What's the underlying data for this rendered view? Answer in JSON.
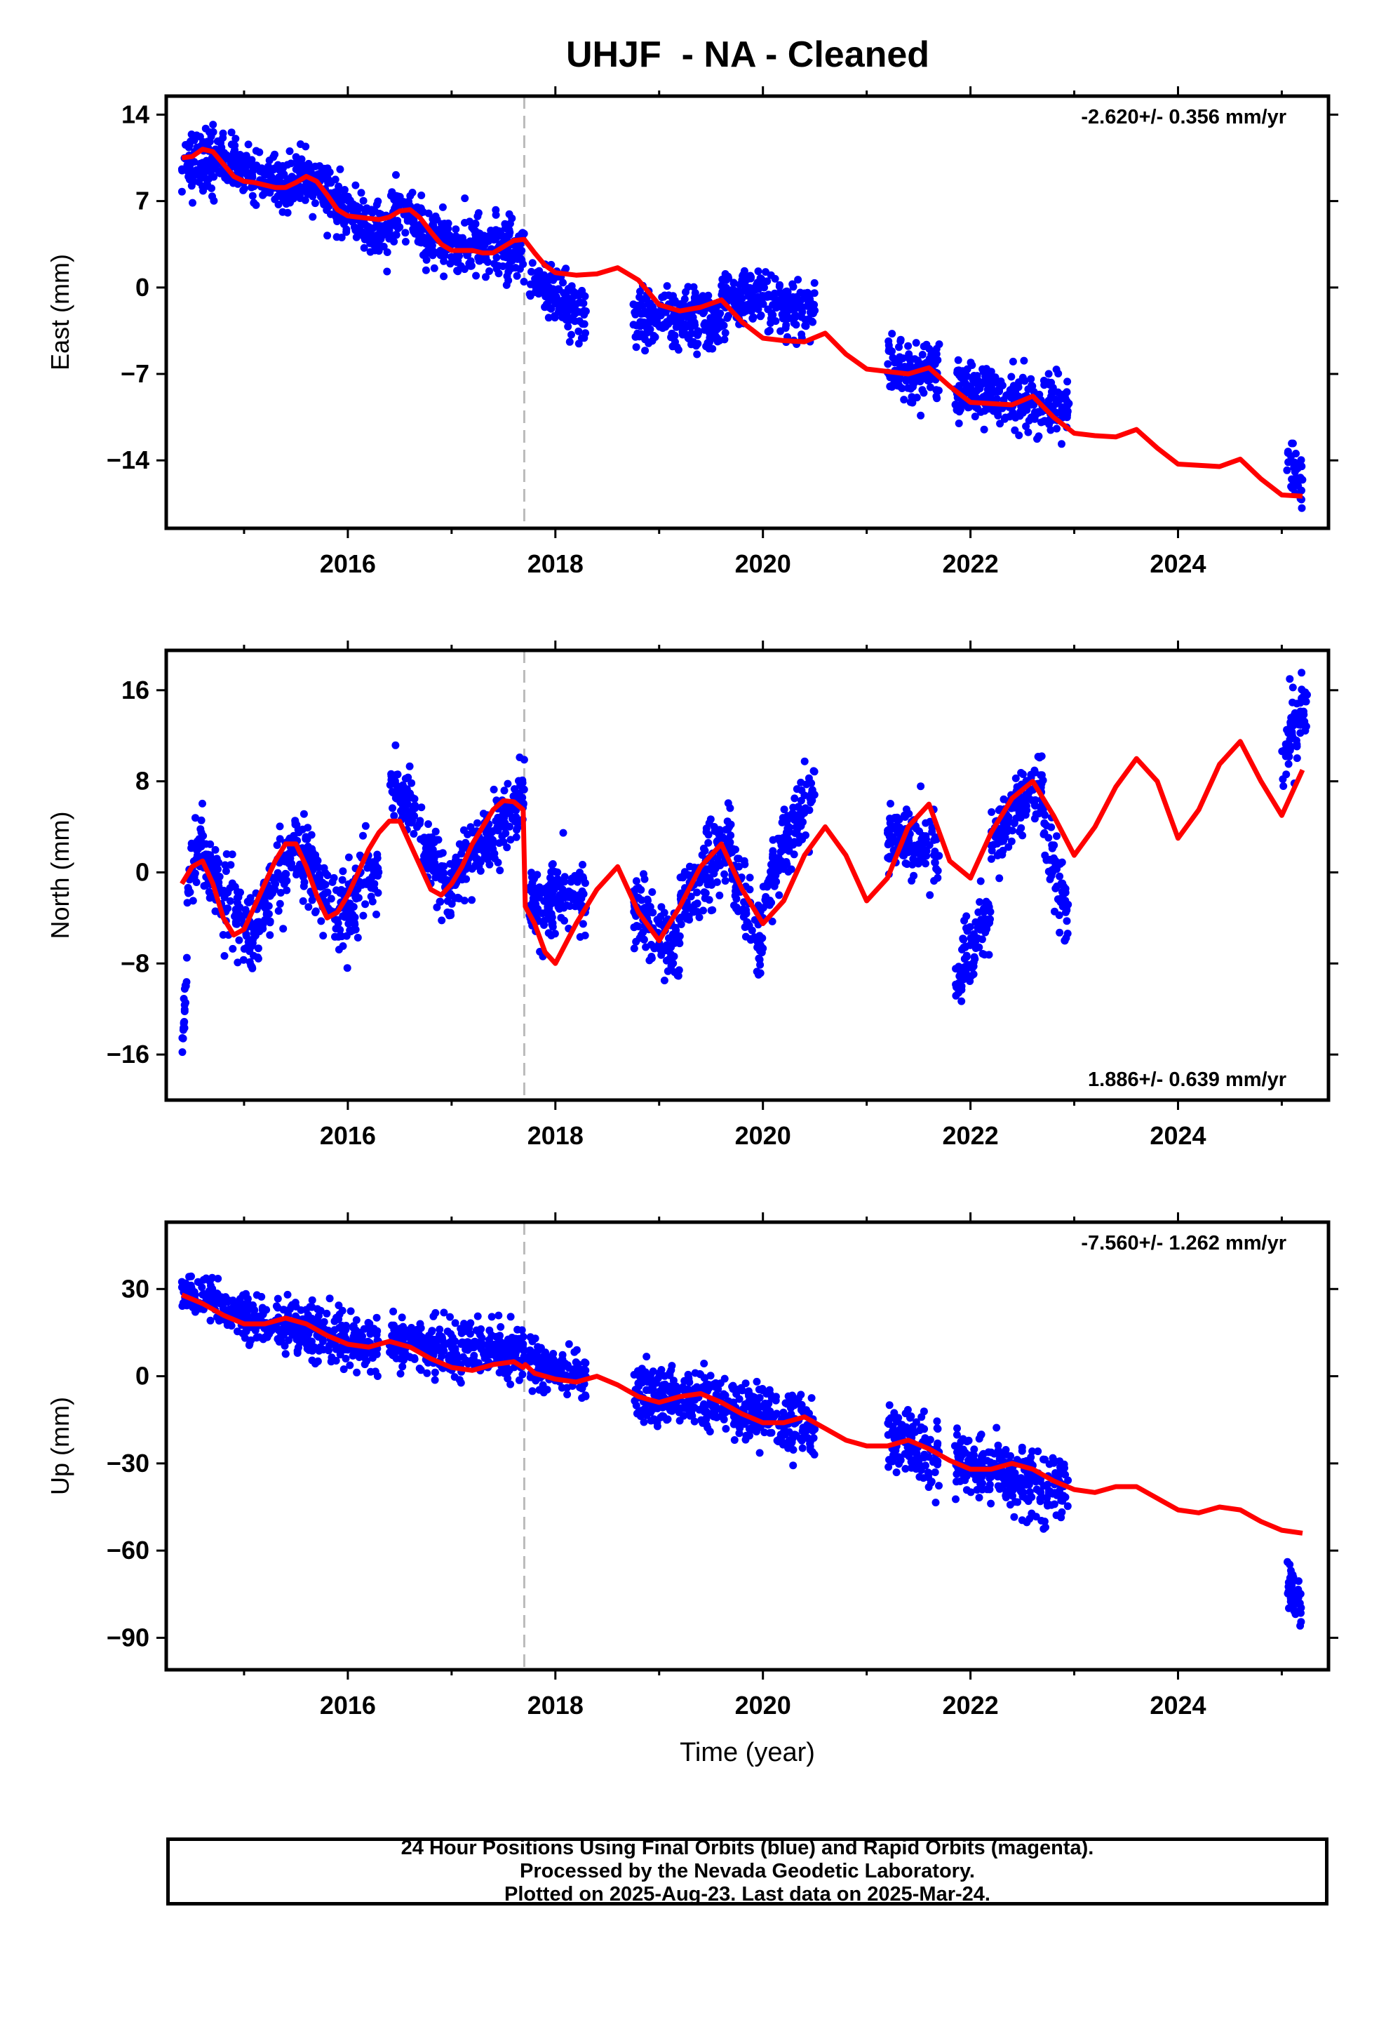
{
  "title": "UHJF  - NA - Cleaned",
  "footer": {
    "line1": "24 Hour Positions Using Final Orbits (blue) and Rapid Orbits (magenta).",
    "line2": "Processed by the Nevada Geodetic Laboratory.",
    "line3": "Plotted on 2025-Aug-23. Last data on 2025-Mar-24."
  },
  "colors": {
    "data": "#0000ff",
    "model": "#ff0000",
    "break_line": "#bbbbbb"
  },
  "chart_data": [
    {
      "type": "scatter",
      "ylabel": "East (mm)",
      "rate_label": "-2.620+/- 0.356 mm/yr",
      "rate_position": "top-right",
      "xlim": [
        2014.25,
        2025.45
      ],
      "ylim": [
        -19.5,
        15.5
      ],
      "yticks": [
        14,
        7,
        0,
        -7,
        -14
      ],
      "ytick_labels": [
        "14",
        "7",
        "0",
        "−7",
        "−14"
      ],
      "xticks": [
        2016,
        2018,
        2020,
        2022,
        2024
      ],
      "xtick_labels": [
        "2016",
        "2018",
        "2020",
        "2022",
        "2024"
      ],
      "break_epoch": 2017.7,
      "scatter_segments": [
        {
          "x": [
            2014.4,
            2014.7
          ],
          "y": [
            10,
            10.5
          ],
          "spread": 2.5
        },
        {
          "x": [
            2014.7,
            2015.5
          ],
          "y": [
            10.5,
            8
          ],
          "spread": 1.8
        },
        {
          "x": [
            2015.5,
            2016.0
          ],
          "y": [
            9.5,
            6
          ],
          "spread": 2
        },
        {
          "x": [
            2016.0,
            2016.4
          ],
          "y": [
            6,
            4
          ],
          "spread": 2
        },
        {
          "x": [
            2016.4,
            2017.0
          ],
          "y": [
            6,
            3.5
          ],
          "spread": 2
        },
        {
          "x": [
            2017.0,
            2017.7
          ],
          "y": [
            3.5,
            3
          ],
          "spread": 2.2
        },
        {
          "x": [
            2017.75,
            2018.3
          ],
          "y": [
            0.5,
            -2
          ],
          "spread": 2
        },
        {
          "x": [
            2018.75,
            2019.6
          ],
          "y": [
            -2.5,
            -3
          ],
          "spread": 2.3
        },
        {
          "x": [
            2019.6,
            2020.5
          ],
          "y": [
            -0.5,
            -2
          ],
          "spread": 2
        },
        {
          "x": [
            2021.2,
            2021.7
          ],
          "y": [
            -6.5,
            -7
          ],
          "spread": 2.2
        },
        {
          "x": [
            2021.85,
            2022.95
          ],
          "y": [
            -8,
            -10
          ],
          "spread": 2.2
        },
        {
          "x": [
            2025.05,
            2025.2
          ],
          "y": [
            -14,
            -16
          ],
          "spread": 2
        }
      ],
      "model": {
        "x": [
          2014.4,
          2014.5,
          2014.6,
          2014.7,
          2014.8,
          2014.9,
          2015.0,
          2015.1,
          2015.2,
          2015.3,
          2015.4,
          2015.5,
          2015.6,
          2015.7,
          2015.8,
          2015.9,
          2016.0,
          2016.1,
          2016.2,
          2016.3,
          2016.4,
          2016.5,
          2016.6,
          2016.7,
          2016.8,
          2016.9,
          2017.0,
          2017.1,
          2017.2,
          2017.3,
          2017.4,
          2017.5,
          2017.6,
          2017.7,
          2017.8,
          2017.9,
          2018.0,
          2018.2,
          2018.4,
          2018.6,
          2018.8,
          2019.0,
          2019.2,
          2019.4,
          2019.6,
          2019.8,
          2020.0,
          2020.2,
          2020.4,
          2020.6,
          2020.8,
          2021.0,
          2021.2,
          2021.4,
          2021.6,
          2021.8,
          2022.0,
          2022.2,
          2022.4,
          2022.6,
          2022.8,
          2023.0,
          2023.2,
          2023.4,
          2023.6,
          2023.8,
          2024.0,
          2024.2,
          2024.4,
          2024.6,
          2024.8,
          2025.0,
          2025.2
        ],
        "y": [
          10.5,
          10.6,
          11.2,
          11.0,
          10.0,
          9.0,
          8.6,
          8.5,
          8.3,
          8.1,
          8.1,
          8.5,
          9.0,
          8.6,
          7.5,
          6.3,
          5.8,
          5.7,
          5.6,
          5.5,
          5.7,
          6.2,
          6.3,
          5.6,
          4.5,
          3.5,
          3.0,
          3.0,
          3.0,
          2.8,
          2.8,
          3.3,
          3.8,
          3.9,
          2.8,
          1.8,
          1.2,
          1.0,
          1.1,
          1.6,
          0.6,
          -1.4,
          -1.9,
          -1.6,
          -1.0,
          -2.8,
          -4.1,
          -4.3,
          -4.4,
          -3.7,
          -5.4,
          -6.6,
          -6.8,
          -7.0,
          -6.5,
          -8.0,
          -9.3,
          -9.4,
          -9.5,
          -8.8,
          -10.5,
          -11.8,
          -12.0,
          -12.1,
          -11.5,
          -13.0,
          -14.3,
          -14.4,
          -14.5,
          -13.9,
          -15.5,
          -16.8,
          -16.9
        ]
      }
    },
    {
      "type": "scatter",
      "ylabel": "North (mm)",
      "rate_label": "1.886+/- 0.639 mm/yr",
      "rate_position": "bottom-right",
      "xlim": [
        2014.25,
        2025.45
      ],
      "ylim": [
        -20,
        19.5
      ],
      "yticks": [
        16,
        8,
        0,
        -8,
        -16
      ],
      "ytick_labels": [
        "16",
        "8",
        "0",
        "−8",
        "−16"
      ],
      "xticks": [
        2016,
        2018,
        2020,
        2022,
        2024
      ],
      "xtick_labels": [
        "2016",
        "2018",
        "2020",
        "2022",
        "2024"
      ],
      "break_epoch": 2017.7,
      "scatter_segments": [
        {
          "x": [
            2014.4,
            2014.45
          ],
          "y": [
            -17,
            -8
          ],
          "spread": 2
        },
        {
          "x": [
            2014.45,
            2014.6
          ],
          "y": [
            -2,
            4
          ],
          "spread": 3
        },
        {
          "x": [
            2014.6,
            2015.1
          ],
          "y": [
            1,
            -7
          ],
          "spread": 3
        },
        {
          "x": [
            2015.1,
            2015.5
          ],
          "y": [
            -5,
            3
          ],
          "spread": 3
        },
        {
          "x": [
            2015.5,
            2015.9
          ],
          "y": [
            3,
            -4
          ],
          "spread": 3
        },
        {
          "x": [
            2015.9,
            2016.3
          ],
          "y": [
            -4,
            1
          ],
          "spread": 3
        },
        {
          "x": [
            2016.4,
            2016.7
          ],
          "y": [
            8,
            5
          ],
          "spread": 2.5
        },
        {
          "x": [
            2016.7,
            2017.0
          ],
          "y": [
            3,
            -2
          ],
          "spread": 3
        },
        {
          "x": [
            2017.0,
            2017.7
          ],
          "y": [
            -1,
            7
          ],
          "spread": 2.5
        },
        {
          "x": [
            2017.75,
            2018.3
          ],
          "y": [
            -3,
            -2
          ],
          "spread": 3
        },
        {
          "x": [
            2018.75,
            2019.2
          ],
          "y": [
            -3,
            -7
          ],
          "spread": 3
        },
        {
          "x": [
            2019.2,
            2019.7
          ],
          "y": [
            -3,
            3
          ],
          "spread": 3
        },
        {
          "x": [
            2019.7,
            2020.0
          ],
          "y": [
            0,
            -7
          ],
          "spread": 3
        },
        {
          "x": [
            2020.0,
            2020.5
          ],
          "y": [
            -2,
            8
          ],
          "spread": 3
        },
        {
          "x": [
            2021.2,
            2021.7
          ],
          "y": [
            3,
            2
          ],
          "spread": 2.5
        },
        {
          "x": [
            2021.85,
            2022.2
          ],
          "y": [
            -10,
            -3
          ],
          "spread": 3
        },
        {
          "x": [
            2022.2,
            2022.7
          ],
          "y": [
            3,
            8
          ],
          "spread": 2.5
        },
        {
          "x": [
            2022.7,
            2022.95
          ],
          "y": [
            4,
            -4
          ],
          "spread": 3
        },
        {
          "x": [
            2025.0,
            2025.25
          ],
          "y": [
            10,
            15
          ],
          "spread": 3
        }
      ],
      "model": {
        "x": [
          2014.4,
          2014.5,
          2014.6,
          2014.7,
          2014.8,
          2014.9,
          2015.0,
          2015.1,
          2015.2,
          2015.3,
          2015.4,
          2015.5,
          2015.6,
          2015.7,
          2015.8,
          2015.9,
          2016.0,
          2016.1,
          2016.2,
          2016.3,
          2016.4,
          2016.5,
          2016.6,
          2016.7,
          2016.8,
          2016.9,
          2017.0,
          2017.1,
          2017.2,
          2017.3,
          2017.4,
          2017.5,
          2017.6,
          2017.69,
          2017.71,
          2017.8,
          2017.9,
          2018.0,
          2018.2,
          2018.4,
          2018.6,
          2018.8,
          2019.0,
          2019.2,
          2019.4,
          2019.6,
          2019.8,
          2020.0,
          2020.2,
          2020.4,
          2020.6,
          2020.8,
          2021.0,
          2021.2,
          2021.4,
          2021.6,
          2021.8,
          2022.0,
          2022.2,
          2022.4,
          2022.6,
          2022.8,
          2023.0,
          2023.2,
          2023.4,
          2023.6,
          2023.8,
          2024.0,
          2024.2,
          2024.4,
          2024.6,
          2024.8,
          2025.0,
          2025.2
        ],
        "y": [
          -1,
          0.5,
          1,
          -1,
          -4,
          -5.5,
          -5,
          -3,
          -1,
          1,
          2.5,
          2.5,
          0.5,
          -2,
          -4,
          -3.5,
          -2,
          0,
          2,
          3.5,
          4.5,
          4.5,
          2.5,
          0.5,
          -1.5,
          -2,
          -1,
          0.5,
          2.5,
          4,
          5.5,
          6.3,
          6.2,
          5.5,
          -3,
          -4.5,
          -7,
          -8,
          -4.5,
          -1.5,
          0.5,
          -3.5,
          -6,
          -3,
          0.5,
          2.5,
          -1.5,
          -4.5,
          -2.5,
          1.5,
          4,
          1.5,
          -2.5,
          -0.5,
          4,
          6,
          1,
          -0.5,
          3.5,
          6.5,
          8,
          5,
          1.5,
          4,
          7.5,
          10,
          8,
          3,
          5.5,
          9.5,
          11.5,
          8,
          5,
          9
        ]
      }
    },
    {
      "type": "scatter",
      "ylabel": "Up (mm)",
      "rate_label": "-7.560+/- 1.262 mm/yr",
      "rate_position": "top-right",
      "xlim": [
        2014.25,
        2025.45
      ],
      "ylim": [
        -101,
        53
      ],
      "yticks": [
        30,
        0,
        -30,
        -60,
        -90
      ],
      "ytick_labels": [
        "30",
        "0",
        "−30",
        "−60",
        "−90"
      ],
      "xticks": [
        2016,
        2018,
        2020,
        2022,
        2024
      ],
      "xtick_labels": [
        "2016",
        "2018",
        "2020",
        "2022",
        "2024"
      ],
      "xlabel": "Time (year)",
      "break_epoch": 2017.7,
      "scatter_segments": [
        {
          "x": [
            2014.4,
            2015.0
          ],
          "y": [
            30,
            20
          ],
          "spread": 7
        },
        {
          "x": [
            2015.0,
            2016.3
          ],
          "y": [
            20,
            10
          ],
          "spread": 8
        },
        {
          "x": [
            2016.4,
            2017.7
          ],
          "y": [
            12,
            8
          ],
          "spread": 8
        },
        {
          "x": [
            2017.75,
            2018.3
          ],
          "y": [
            5,
            0
          ],
          "spread": 7
        },
        {
          "x": [
            2018.75,
            2019.6
          ],
          "y": [
            -7,
            -8
          ],
          "spread": 9
        },
        {
          "x": [
            2019.6,
            2020.5
          ],
          "y": [
            -10,
            -18
          ],
          "spread": 9
        },
        {
          "x": [
            2021.2,
            2021.7
          ],
          "y": [
            -20,
            -28
          ],
          "spread": 10
        },
        {
          "x": [
            2021.85,
            2022.95
          ],
          "y": [
            -28,
            -42
          ],
          "spread": 10
        },
        {
          "x": [
            2025.05,
            2025.2
          ],
          "y": [
            -70,
            -80
          ],
          "spread": 8
        }
      ],
      "model": {
        "x": [
          2014.4,
          2014.6,
          2014.8,
          2015.0,
          2015.2,
          2015.4,
          2015.6,
          2015.8,
          2016.0,
          2016.2,
          2016.4,
          2016.6,
          2016.8,
          2017.0,
          2017.2,
          2017.4,
          2017.6,
          2017.69,
          2017.71,
          2017.8,
          2018.0,
          2018.2,
          2018.4,
          2018.6,
          2018.8,
          2019.0,
          2019.2,
          2019.4,
          2019.6,
          2019.8,
          2020.0,
          2020.2,
          2020.4,
          2020.6,
          2020.8,
          2021.0,
          2021.2,
          2021.4,
          2021.6,
          2021.8,
          2022.0,
          2022.2,
          2022.4,
          2022.6,
          2022.8,
          2023.0,
          2023.2,
          2023.4,
          2023.6,
          2023.8,
          2024.0,
          2024.2,
          2024.4,
          2024.6,
          2024.8,
          2025.0,
          2025.2
        ],
        "y": [
          28,
          25,
          21,
          18,
          18,
          20,
          18,
          14,
          11,
          10,
          12,
          10,
          6,
          3,
          2,
          4,
          5,
          3,
          4,
          1,
          -1,
          -2,
          0,
          -3,
          -7,
          -9,
          -7,
          -6,
          -9,
          -13,
          -16,
          -16,
          -14,
          -18,
          -22,
          -24,
          -24,
          -22,
          -25,
          -29,
          -32,
          -32,
          -30,
          -32,
          -36,
          -39,
          -40,
          -38,
          -38,
          -42,
          -46,
          -47,
          -45,
          -46,
          -50,
          -53,
          -54
        ]
      }
    }
  ]
}
